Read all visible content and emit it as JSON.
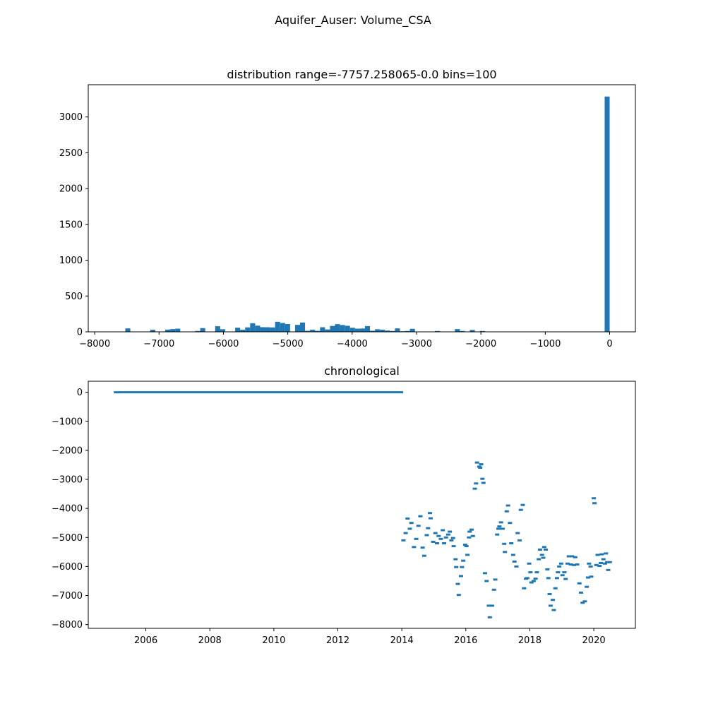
{
  "figure": {
    "suptitle": "Aquifer_Auser: Volume_CSA"
  },
  "colors": {
    "series": "#1f77b4",
    "axes": "#000000",
    "background": "#ffffff"
  },
  "chart_data": [
    {
      "type": "bar",
      "kind": "histogram",
      "title": "distribution range=-7757.258065-0.0 bins=100",
      "xlabel": "",
      "ylabel": "",
      "xlim": [
        -8100,
        400
      ],
      "ylim": [
        0,
        3450
      ],
      "grid": false,
      "xticks": [
        -8000,
        -7000,
        -6000,
        -5000,
        -4000,
        -3000,
        -2000,
        -1000,
        0
      ],
      "xtick_labels": [
        "−8000",
        "−7000",
        "−6000",
        "−5000",
        "−4000",
        "−3000",
        "−2000",
        "−1000",
        "0"
      ],
      "yticks": [
        0,
        500,
        1000,
        1500,
        2000,
        2500,
        3000
      ],
      "ytick_labels": [
        "0",
        "500",
        "1000",
        "1500",
        "2000",
        "2500",
        "3000"
      ],
      "range": [
        -7757.258065,
        0.0
      ],
      "bins": 100,
      "counts": [
        0,
        0,
        0,
        48,
        0,
        0,
        0,
        0,
        30,
        0,
        0,
        31,
        38,
        44,
        0,
        0,
        0,
        12,
        52,
        0,
        0,
        78,
        36,
        0,
        0,
        58,
        30,
        62,
        120,
        86,
        65,
        64,
        62,
        140,
        123,
        108,
        0,
        97,
        130,
        14,
        30,
        14,
        64,
        33,
        82,
        107,
        95,
        84,
        57,
        44,
        46,
        80,
        15,
        36,
        30,
        18,
        12,
        48,
        8,
        12,
        42,
        0,
        0,
        0,
        0,
        12,
        0,
        0,
        0,
        38,
        12,
        0,
        26,
        0,
        12,
        0,
        0,
        0,
        0,
        0,
        0,
        0,
        0,
        0,
        0,
        0,
        0,
        0,
        0,
        0,
        0,
        0,
        0,
        0,
        0,
        0,
        0,
        0,
        0,
        3285
      ]
    },
    {
      "type": "line",
      "title": "chronological",
      "xlabel": "",
      "ylabel": "",
      "xlim": [
        2004.2,
        2021.3
      ],
      "ylim": [
        -8130,
        380
      ],
      "grid": false,
      "xticks": [
        2006,
        2008,
        2010,
        2012,
        2014,
        2016,
        2018,
        2020
      ],
      "xtick_labels": [
        "2006",
        "2008",
        "2010",
        "2012",
        "2014",
        "2016",
        "2018",
        "2020"
      ],
      "yticks": [
        0,
        -1000,
        -2000,
        -3000,
        -4000,
        -5000,
        -6000,
        -7000,
        -8000
      ],
      "ytick_labels": [
        "0",
        "−1000",
        "−2000",
        "−3000",
        "−4000",
        "−5000",
        "−6000",
        "−7000",
        "−8000"
      ],
      "series": [
        {
          "style": "flat",
          "x": [
            2005.0,
            2014.04
          ],
          "y": [
            0,
            0
          ]
        },
        {
          "style": "segments",
          "points": [
            [
              2014.05,
              -5100
            ],
            [
              2014.12,
              -4850
            ],
            [
              2014.18,
              -4350
            ],
            [
              2014.25,
              -4700
            ],
            [
              2014.3,
              -4500
            ],
            [
              2014.38,
              -5330
            ],
            [
              2014.45,
              -5050
            ],
            [
              2014.52,
              -4600
            ],
            [
              2014.58,
              -4270
            ],
            [
              2014.65,
              -5350
            ],
            [
              2014.7,
              -5630
            ],
            [
              2014.78,
              -4920
            ],
            [
              2014.82,
              -4680
            ],
            [
              2014.88,
              -4160
            ],
            [
              2014.9,
              -4340
            ],
            [
              2014.98,
              -5150
            ],
            [
              2015.05,
              -4850
            ],
            [
              2015.1,
              -5200
            ],
            [
              2015.15,
              -4950
            ],
            [
              2015.22,
              -5050
            ],
            [
              2015.28,
              -4750
            ],
            [
              2015.32,
              -5200
            ],
            [
              2015.38,
              -5000
            ],
            [
              2015.45,
              -4900
            ],
            [
              2015.5,
              -4800
            ],
            [
              2015.55,
              -5100
            ],
            [
              2015.6,
              -5020
            ],
            [
              2015.62,
              -5300
            ],
            [
              2015.68,
              -5750
            ],
            [
              2015.7,
              -6020
            ],
            [
              2015.75,
              -6600
            ],
            [
              2015.78,
              -6980
            ],
            [
              2015.85,
              -6330
            ],
            [
              2015.88,
              -6020
            ],
            [
              2015.92,
              -5800
            ],
            [
              2015.98,
              -5250
            ],
            [
              2016.02,
              -5300
            ],
            [
              2016.05,
              -5600
            ],
            [
              2016.1,
              -5000
            ],
            [
              2016.12,
              -4800
            ],
            [
              2016.18,
              -4730
            ],
            [
              2016.22,
              -4950
            ],
            [
              2016.28,
              -3320
            ],
            [
              2016.32,
              -3140
            ],
            [
              2016.35,
              -2420
            ],
            [
              2016.42,
              -2560
            ],
            [
              2016.45,
              -2600
            ],
            [
              2016.48,
              -2480
            ],
            [
              2016.52,
              -2980
            ],
            [
              2016.55,
              -3120
            ],
            [
              2016.6,
              -6230
            ],
            [
              2016.65,
              -6500
            ],
            [
              2016.72,
              -7350
            ],
            [
              2016.75,
              -7750
            ],
            [
              2016.82,
              -7350
            ],
            [
              2016.88,
              -6800
            ],
            [
              2016.92,
              -6450
            ],
            [
              2016.98,
              -4900
            ],
            [
              2017.02,
              -4700
            ],
            [
              2017.05,
              -4620
            ],
            [
              2017.1,
              -4480
            ],
            [
              2017.15,
              -4700
            ],
            [
              2017.2,
              -5220
            ],
            [
              2017.22,
              -5500
            ],
            [
              2017.28,
              -4100
            ],
            [
              2017.32,
              -3900
            ],
            [
              2017.38,
              -4500
            ],
            [
              2017.42,
              -5200
            ],
            [
              2017.48,
              -5600
            ],
            [
              2017.52,
              -5830
            ],
            [
              2017.58,
              -6000
            ],
            [
              2017.62,
              -4850
            ],
            [
              2017.68,
              -5100
            ],
            [
              2017.72,
              -4050
            ],
            [
              2017.78,
              -3880
            ],
            [
              2017.82,
              -6750
            ],
            [
              2017.88,
              -6420
            ],
            [
              2017.92,
              -6400
            ],
            [
              2017.98,
              -5900
            ],
            [
              2018.02,
              -6200
            ],
            [
              2018.05,
              -6550
            ],
            [
              2018.12,
              -6500
            ],
            [
              2018.18,
              -6420
            ],
            [
              2018.22,
              -6200
            ],
            [
              2018.28,
              -5750
            ],
            [
              2018.32,
              -5420
            ],
            [
              2018.38,
              -5600
            ],
            [
              2018.42,
              -5700
            ],
            [
              2018.45,
              -5330
            ],
            [
              2018.5,
              -5420
            ],
            [
              2018.55,
              -6100
            ],
            [
              2018.58,
              -6400
            ],
            [
              2018.62,
              -6950
            ],
            [
              2018.65,
              -7350
            ],
            [
              2018.72,
              -7150
            ],
            [
              2018.75,
              -7500
            ],
            [
              2018.8,
              -6750
            ],
            [
              2018.85,
              -6400
            ],
            [
              2018.88,
              -6200
            ],
            [
              2018.92,
              -6000
            ],
            [
              2018.98,
              -5900
            ],
            [
              2019.02,
              -6300
            ],
            [
              2019.08,
              -6200
            ],
            [
              2019.12,
              -6430
            ],
            [
              2019.18,
              -5900
            ],
            [
              2019.22,
              -5650
            ],
            [
              2019.28,
              -5930
            ],
            [
              2019.32,
              -5650
            ],
            [
              2019.38,
              -5950
            ],
            [
              2019.42,
              -5680
            ],
            [
              2019.48,
              -5930
            ],
            [
              2019.55,
              -6580
            ],
            [
              2019.6,
              -6900
            ],
            [
              2019.65,
              -7250
            ],
            [
              2019.72,
              -7200
            ],
            [
              2019.78,
              -6700
            ],
            [
              2019.82,
              -6380
            ],
            [
              2019.85,
              -5900
            ],
            [
              2019.9,
              -6000
            ],
            [
              2019.92,
              -6350
            ],
            [
              2020.0,
              -3650
            ],
            [
              2020.02,
              -3820
            ],
            [
              2020.08,
              -5950
            ],
            [
              2020.12,
              -5600
            ],
            [
              2020.18,
              -5980
            ],
            [
              2020.22,
              -5880
            ],
            [
              2020.25,
              -5580
            ],
            [
              2020.3,
              -5750
            ],
            [
              2020.35,
              -5900
            ],
            [
              2020.38,
              -5550
            ],
            [
              2020.42,
              -5850
            ],
            [
              2020.45,
              -6120
            ],
            [
              2020.5,
              -5850
            ]
          ]
        }
      ]
    }
  ]
}
